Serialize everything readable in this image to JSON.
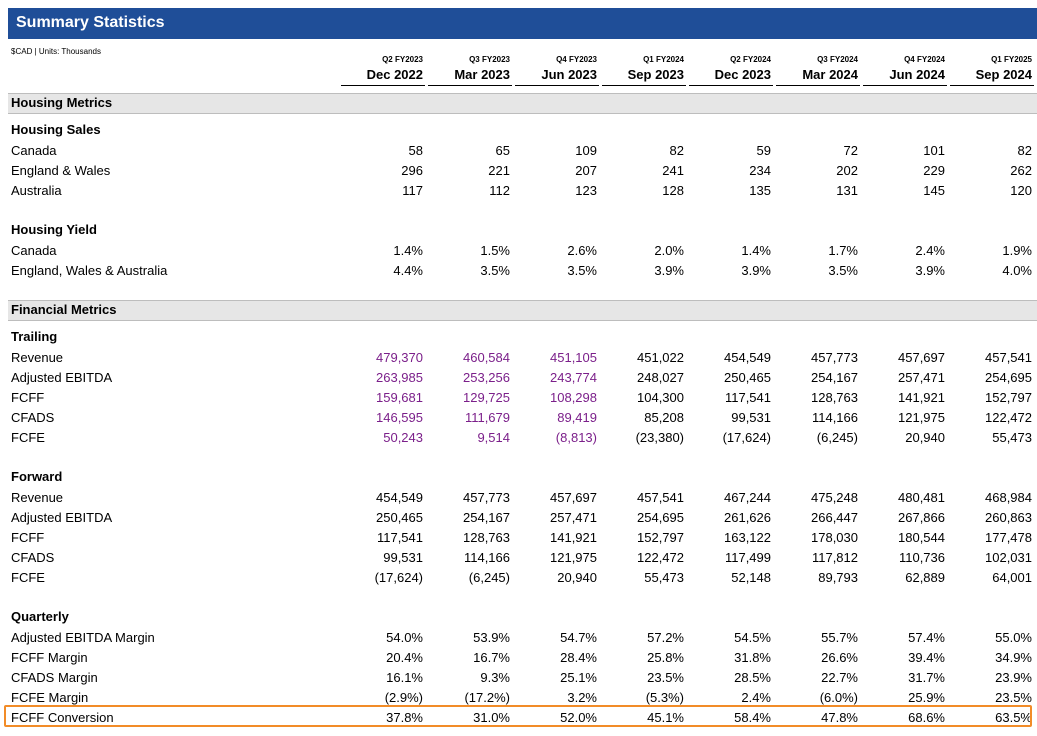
{
  "title": "Summary Statistics",
  "units": "$CAD | Units: Thousands",
  "colors": {
    "title_bg": "#1f4e98",
    "purple": "#7b1f8a",
    "highlight": "#f28c28",
    "band": "#e6e6e6"
  },
  "columns": [
    {
      "quarter": "Q2 FY2023",
      "date": "Dec 2022"
    },
    {
      "quarter": "Q3 FY2023",
      "date": "Mar 2023"
    },
    {
      "quarter": "Q4 FY2023",
      "date": "Jun 2023"
    },
    {
      "quarter": "Q1 FY2024",
      "date": "Sep 2023"
    },
    {
      "quarter": "Q2 FY2024",
      "date": "Dec 2023"
    },
    {
      "quarter": "Q3 FY2024",
      "date": "Mar 2024"
    },
    {
      "quarter": "Q4 FY2024",
      "date": "Jun 2024"
    },
    {
      "quarter": "Q1 FY2025",
      "date": "Sep 2024"
    }
  ],
  "housing_metrics": {
    "label": "Housing Metrics",
    "sales": {
      "label": "Housing Sales",
      "rows": [
        {
          "label": "Canada",
          "values": [
            "58",
            "65",
            "109",
            "82",
            "59",
            "72",
            "101",
            "82"
          ]
        },
        {
          "label": "England & Wales",
          "values": [
            "296",
            "221",
            "207",
            "241",
            "234",
            "202",
            "229",
            "262"
          ]
        },
        {
          "label": "Australia",
          "values": [
            "117",
            "112",
            "123",
            "128",
            "135",
            "131",
            "145",
            "120"
          ]
        }
      ]
    },
    "yield": {
      "label": "Housing Yield",
      "rows": [
        {
          "label": "Canada",
          "values": [
            "1.4%",
            "1.5%",
            "2.6%",
            "2.0%",
            "1.4%",
            "1.7%",
            "2.4%",
            "1.9%"
          ]
        },
        {
          "label": "England, Wales & Australia",
          "values": [
            "4.4%",
            "3.5%",
            "3.5%",
            "3.9%",
            "3.9%",
            "3.5%",
            "3.9%",
            "4.0%"
          ]
        }
      ]
    }
  },
  "financial_metrics": {
    "label": "Financial Metrics",
    "trailing": {
      "label": "Trailing",
      "rows": [
        {
          "label": "Revenue",
          "values": [
            "479,370",
            "460,584",
            "451,105",
            "451,022",
            "454,549",
            "457,773",
            "457,697",
            "457,541"
          ]
        },
        {
          "label": "Adjusted EBITDA",
          "values": [
            "263,985",
            "253,256",
            "243,774",
            "248,027",
            "250,465",
            "254,167",
            "257,471",
            "254,695"
          ]
        },
        {
          "label": "FCFF",
          "values": [
            "159,681",
            "129,725",
            "108,298",
            "104,300",
            "117,541",
            "128,763",
            "141,921",
            "152,797"
          ]
        },
        {
          "label": "CFADS",
          "values": [
            "146,595",
            "111,679",
            "89,419",
            "85,208",
            "99,531",
            "114,166",
            "121,975",
            "122,472"
          ]
        },
        {
          "label": "FCFE",
          "values": [
            "50,243",
            "9,514",
            "(8,813)",
            "(23,380)",
            "(17,624)",
            "(6,245)",
            "20,940",
            "55,473"
          ]
        }
      ]
    },
    "forward": {
      "label": "Forward",
      "rows": [
        {
          "label": "Revenue",
          "values": [
            "454,549",
            "457,773",
            "457,697",
            "457,541",
            "467,244",
            "475,248",
            "480,481",
            "468,984"
          ]
        },
        {
          "label": "Adjusted EBITDA",
          "values": [
            "250,465",
            "254,167",
            "257,471",
            "254,695",
            "261,626",
            "266,447",
            "267,866",
            "260,863"
          ]
        },
        {
          "label": "FCFF",
          "values": [
            "117,541",
            "128,763",
            "141,921",
            "152,797",
            "163,122",
            "178,030",
            "180,544",
            "177,478"
          ]
        },
        {
          "label": "CFADS",
          "values": [
            "99,531",
            "114,166",
            "121,975",
            "122,472",
            "117,499",
            "117,812",
            "110,736",
            "102,031"
          ]
        },
        {
          "label": "FCFE",
          "values": [
            "(17,624)",
            "(6,245)",
            "20,940",
            "55,473",
            "52,148",
            "89,793",
            "62,889",
            "64,001"
          ]
        }
      ]
    },
    "quarterly": {
      "label": "Quarterly",
      "rows": [
        {
          "label": "Adjusted EBITDA Margin",
          "values": [
            "54.0%",
            "53.9%",
            "54.7%",
            "57.2%",
            "54.5%",
            "55.7%",
            "57.4%",
            "55.0%"
          ]
        },
        {
          "label": "FCFF Margin",
          "values": [
            "20.4%",
            "16.7%",
            "28.4%",
            "25.8%",
            "31.8%",
            "26.6%",
            "39.4%",
            "34.9%"
          ]
        },
        {
          "label": "CFADS Margin",
          "values": [
            "16.1%",
            "9.3%",
            "25.1%",
            "23.5%",
            "28.5%",
            "22.7%",
            "31.7%",
            "23.9%"
          ]
        },
        {
          "label": "FCFE Margin",
          "values": [
            "(2.9%)",
            "(17.2%)",
            "3.2%",
            "(5.3%)",
            "2.4%",
            "(6.0%)",
            "25.9%",
            "23.5%"
          ]
        },
        {
          "label": "FCFF Conversion",
          "values": [
            "37.8%",
            "31.0%",
            "52.0%",
            "45.1%",
            "58.4%",
            "47.8%",
            "68.6%",
            "63.5%"
          ]
        }
      ]
    }
  }
}
